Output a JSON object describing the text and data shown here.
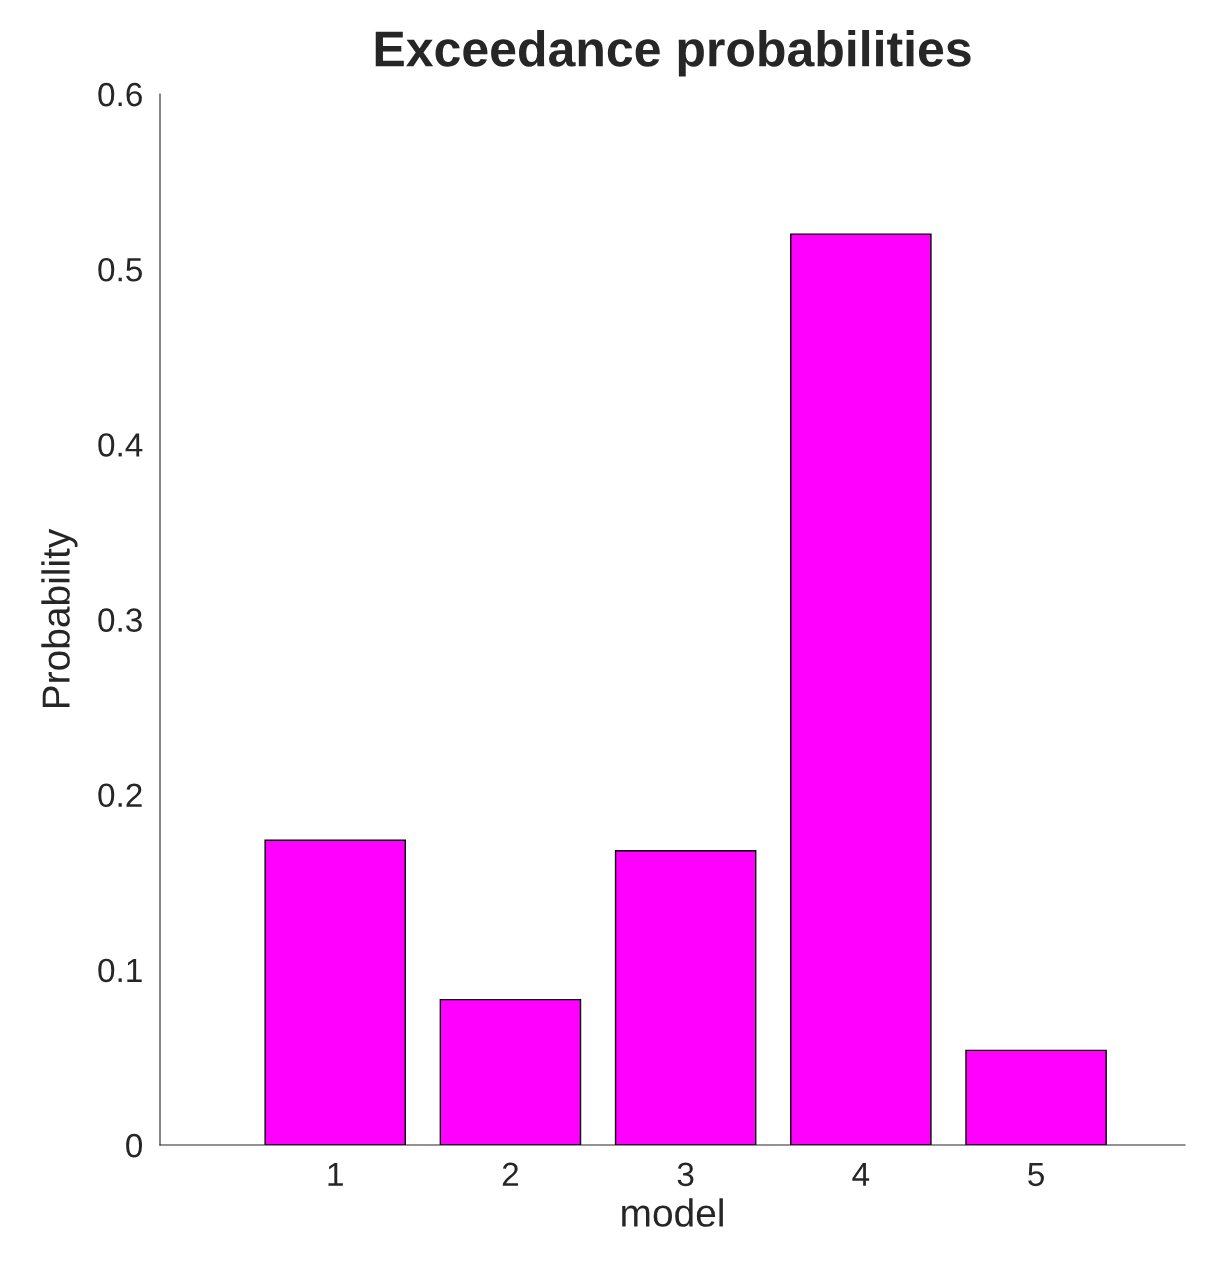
{
  "chart_data": {
    "type": "bar",
    "title": "Exceedance probabilities",
    "xlabel": "model",
    "ylabel": "Probability",
    "x": [
      1,
      2,
      3,
      4,
      5
    ],
    "values": [
      0.174,
      0.083,
      0.168,
      0.52,
      0.054
    ],
    "color": "#ff00ff",
    "xlim": [
      0,
      5.85
    ],
    "xticks": [
      1,
      2,
      3,
      4,
      5
    ],
    "ylim": [
      0,
      0.6
    ],
    "yticks": [
      0,
      0.1,
      0.2,
      0.3,
      0.4,
      0.5,
      0.6
    ],
    "grid": false
  }
}
